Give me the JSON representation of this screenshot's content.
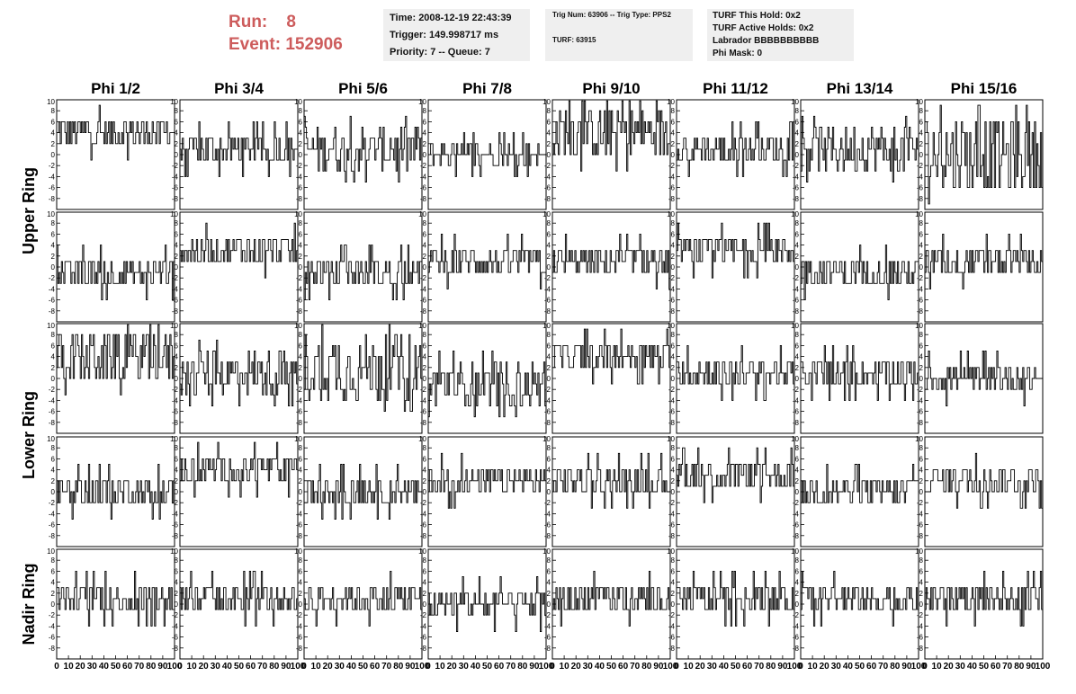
{
  "header": {
    "run_label": "Run:",
    "run_value": "8",
    "event_label": "Event:",
    "event_value": "152906",
    "accent_color": "#cd5c5c"
  },
  "info": {
    "time": "Time: 2008-12-19 22:43:39",
    "trigger": "Trigger: 149.998717 ms",
    "priority": "Priority: 7 -- Queue: 7",
    "trig_line": "Trig Num: 63906 -- Trig Type: PPS2",
    "turf_line": "TURF: 63915",
    "turf_hold": "TURF This Hold: 0x2",
    "turf_active": "TURF Active Holds: 0x2",
    "labrador": "Labrador BBBBBBBBBB",
    "phi_mask": "Phi Mask: 0"
  },
  "chart_data": {
    "type": "line",
    "columns": [
      "Phi 1/2",
      "Phi 3/4",
      "Phi 5/6",
      "Phi 7/8",
      "Phi 9/10",
      "Phi 11/12",
      "Phi 13/14",
      "Phi 15/16"
    ],
    "ring_labels": [
      "Upper Ring",
      "Lower Ring",
      "Nadir Ring"
    ],
    "rows_per_ring": [
      2,
      2,
      1
    ],
    "xlim": [
      0,
      100
    ],
    "ylim": [
      -10,
      10
    ],
    "x_ticks": [
      "0",
      "10",
      "20",
      "30",
      "40",
      "50",
      "60",
      "70",
      "80",
      "90",
      "100"
    ],
    "y_ticks": [
      "-8",
      "-6",
      "-4",
      "-2",
      "0",
      "2",
      "4",
      "6",
      "8"
    ],
    "y_top_label": "10",
    "samples": 100,
    "panel_baselines": [
      [
        4,
        1,
        1,
        0,
        4,
        1,
        1,
        0
      ],
      [
        -1,
        3,
        -1,
        1,
        1,
        3,
        -1,
        1
      ],
      [
        4,
        1,
        2,
        -1,
        4,
        1,
        1,
        0
      ],
      [
        0,
        4,
        0,
        2,
        2,
        3,
        0,
        2
      ],
      [
        1,
        1,
        1,
        0,
        1,
        1,
        1,
        1
      ]
    ],
    "panel_amplitudes": [
      [
        3,
        3,
        4,
        2,
        5,
        3,
        4,
        7
      ],
      [
        3,
        3,
        3,
        3,
        3,
        3,
        3,
        3
      ],
      [
        5,
        4,
        6,
        4,
        3,
        3,
        3,
        3
      ],
      [
        3,
        3,
        3,
        3,
        3,
        3,
        3,
        3
      ],
      [
        3,
        3,
        3,
        3,
        3,
        3,
        3,
        3
      ]
    ]
  }
}
